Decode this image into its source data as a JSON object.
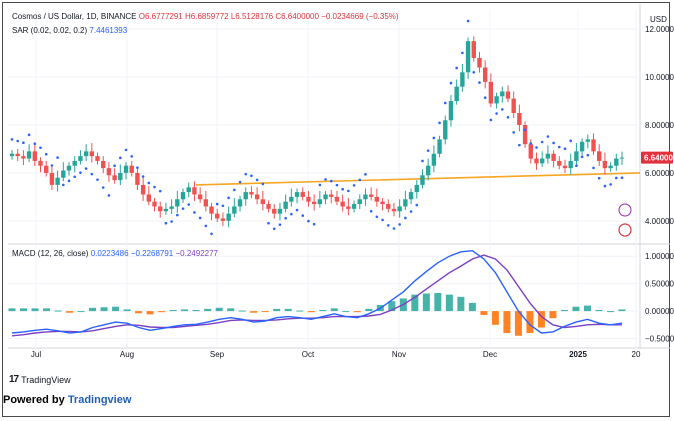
{
  "header": {
    "symbol": "Cosmos / US Dollar, 1D, BINANCE",
    "open": "O6.6777291",
    "high": "H6.6859772",
    "low": "L6.5128176",
    "close": "C6.6400000",
    "change": "−0.0234669 (−0.35%)"
  },
  "sar": {
    "label": "SAR (0.02, 0.02, 0.2)",
    "value": "7.4461393"
  },
  "macd": {
    "label": "MACD (12, 26, close)",
    "v1": "0.0223486",
    "v2": "−0.2268791",
    "v3": "−0.2492277"
  },
  "currency": "USD",
  "price_labels": [
    "12.00000",
    "10.00000",
    "8.00000",
    "6.64000",
    "6.00000",
    "4.00000"
  ],
  "macd_labels": [
    "1.00000",
    "0.50000",
    "0.00000",
    "−0.50000"
  ],
  "months": [
    "Jul",
    "Aug",
    "Sep",
    "Oct",
    "Nov",
    "Dec",
    "2025",
    "20"
  ],
  "footer": {
    "brand": "TradingView",
    "powered": "Powered by",
    "powered_link": "Tradingview"
  },
  "colors": {
    "up": "#26a69a",
    "down": "#ef5350",
    "sar": "#2962ff",
    "trendline": "#f5a623",
    "macd": "#2962ff",
    "signal": "#7b3fc4",
    "last_price": "#e0323c"
  },
  "chart_data": [
    {
      "type": "candlestick",
      "title": "Cosmos / US Dollar, 1D, BINANCE",
      "ylim": [
        3.2,
        12.8
      ],
      "ylabel": "USD",
      "series_close_approx": [
        6.8,
        6.7,
        6.6,
        6.9,
        6.5,
        6.3,
        6.0,
        5.5,
        5.8,
        6.1,
        6.3,
        6.5,
        6.7,
        6.9,
        6.7,
        6.5,
        6.2,
        5.9,
        5.7,
        6.0,
        6.3,
        6.0,
        5.5,
        5.1,
        4.8,
        4.6,
        4.4,
        4.5,
        4.6,
        4.9,
        5.2,
        5.4,
        5.1,
        4.9,
        4.6,
        4.3,
        4.1,
        4.0,
        4.3,
        4.6,
        4.9,
        5.2,
        5.1,
        4.9,
        4.7,
        4.5,
        4.3,
        4.5,
        4.8,
        5.0,
        5.2,
        5.0,
        4.8,
        4.7,
        4.9,
        5.1,
        5.0,
        4.8,
        4.6,
        4.5,
        4.7,
        4.9,
        5.1,
        5.0,
        4.8,
        4.7,
        4.5,
        4.4,
        4.6,
        4.9,
        5.2,
        5.5,
        5.9,
        6.3,
        6.8,
        7.4,
        8.2,
        9.0,
        9.6,
        10.2,
        11.5,
        10.8,
        10.4,
        9.8,
        8.9,
        9.2,
        9.4,
        9.1,
        8.5,
        8.0,
        7.2,
        6.6,
        6.4,
        6.6,
        6.8,
        6.5,
        6.3,
        6.2,
        6.5,
        6.9,
        7.3,
        7.4,
        6.9,
        6.5,
        6.2,
        6.3,
        6.6,
        6.64
      ],
      "trendline": {
        "start_price": 5.5,
        "end_price": 6.0
      },
      "sar": {
        "params": "0.02, 0.02, 0.2",
        "last": 7.4461393
      },
      "last_price": 6.64
    },
    {
      "type": "line",
      "title": "MACD (12, 26, close)",
      "ylim": [
        -0.6,
        1.15
      ],
      "series": [
        {
          "name": "MACD",
          "values": [
            -0.4,
            -0.38,
            -0.35,
            -0.33,
            -0.36,
            -0.4,
            -0.38,
            -0.3,
            -0.25,
            -0.2,
            -0.22,
            -0.3,
            -0.35,
            -0.32,
            -0.28,
            -0.25,
            -0.24,
            -0.2,
            -0.15,
            -0.12,
            -0.15,
            -0.2,
            -0.18,
            -0.12,
            -0.1,
            -0.12,
            -0.15,
            -0.1,
            -0.05,
            -0.1,
            -0.12,
            -0.05,
            0.05,
            0.2,
            0.35,
            0.55,
            0.72,
            0.88,
            1.0,
            1.08,
            1.1,
            0.95,
            0.7,
            0.35,
            0.0,
            -0.25,
            -0.4,
            -0.38,
            -0.28,
            -0.2,
            -0.15,
            -0.22,
            -0.25,
            -0.22
          ]
        },
        {
          "name": "Signal",
          "values": [
            -0.45,
            -0.43,
            -0.4,
            -0.38,
            -0.37,
            -0.37,
            -0.38,
            -0.36,
            -0.32,
            -0.28,
            -0.25,
            -0.26,
            -0.29,
            -0.3,
            -0.3,
            -0.28,
            -0.26,
            -0.24,
            -0.21,
            -0.17,
            -0.16,
            -0.17,
            -0.17,
            -0.16,
            -0.14,
            -0.13,
            -0.13,
            -0.12,
            -0.1,
            -0.1,
            -0.1,
            -0.09,
            -0.06,
            0.02,
            0.12,
            0.25,
            0.4,
            0.55,
            0.7,
            0.82,
            0.95,
            1.02,
            0.95,
            0.75,
            0.45,
            0.15,
            -0.1,
            -0.25,
            -0.3,
            -0.28,
            -0.25,
            -0.24,
            -0.25,
            -0.25
          ]
        }
      ]
    }
  ]
}
